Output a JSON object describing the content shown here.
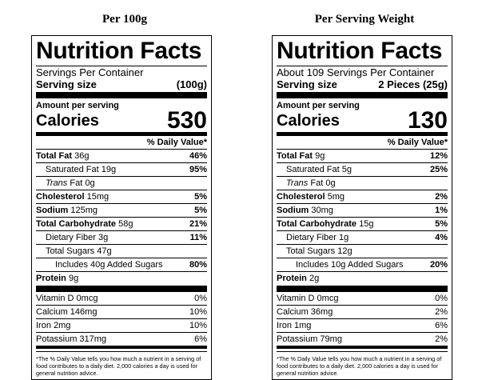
{
  "panels": [
    {
      "heading": "Per 100g",
      "title": "Nutrition Facts",
      "servings_line": "Servings Per Container",
      "serving_size_label": "Serving size",
      "serving_size_value": "(100g)",
      "amount_per_serving": "Amount per serving",
      "calories_label": "Calories",
      "calories_value": "530",
      "daily_value_header": "% Daily Value*",
      "nutrients": [
        {
          "name": "Total Fat",
          "amount": "36g",
          "dv": "46%",
          "bold": true
        },
        {
          "name": "Saturated Fat",
          "amount": "19g",
          "dv": "95%"
        },
        {
          "name": "Trans",
          "suffix": "Fat",
          "amount": "0g",
          "dv": ""
        },
        {
          "name": "Cholesterol",
          "amount": "15mg",
          "dv": "5%",
          "bold": true
        },
        {
          "name": "Sodium",
          "amount": "125mg",
          "dv": "5%",
          "bold": true
        },
        {
          "name": "Total Carbohydrate",
          "amount": "58g",
          "dv": "21%",
          "bold": true
        },
        {
          "name": "Dietary Fiber",
          "amount": "3g",
          "dv": "11%"
        },
        {
          "name": "Total Sugars",
          "amount": "47g",
          "dv": ""
        },
        {
          "name": "Includes 40g Added Sugars",
          "amount": "",
          "dv": "80%"
        },
        {
          "name": "Protein",
          "amount": "9g",
          "dv": "",
          "bold": true
        }
      ],
      "vitamins": [
        {
          "name": "Vitamin D",
          "amount": "0mcg",
          "dv": "0%"
        },
        {
          "name": "Calcium",
          "amount": "146mg",
          "dv": "10%"
        },
        {
          "name": "Iron",
          "amount": "2mg",
          "dv": "10%"
        },
        {
          "name": "Potassium",
          "amount": "317mg",
          "dv": "6%"
        }
      ],
      "footnote": "*The % Daily Value tells you how much a nutrient in a serving of food contributes to a daily diet. 2,000 calories a day is used for general nutrition advice."
    },
    {
      "heading": "Per Serving Weight",
      "title": "Nutrition Facts",
      "servings_line": "About 109 Servings Per Container",
      "serving_size_label": "Serving size",
      "serving_size_value": "2 Pieces (25g)",
      "amount_per_serving": "Amount per serving",
      "calories_label": "Calories",
      "calories_value": "130",
      "daily_value_header": "% Daily Value*",
      "nutrients": [
        {
          "name": "Total Fat",
          "amount": "9g",
          "dv": "12%",
          "bold": true
        },
        {
          "name": "Saturated Fat",
          "amount": "5g",
          "dv": "25%"
        },
        {
          "name": "Trans",
          "suffix": "Fat",
          "amount": "0g",
          "dv": ""
        },
        {
          "name": "Cholesterol",
          "amount": "5mg",
          "dv": "2%",
          "bold": true
        },
        {
          "name": "Sodium",
          "amount": "30mg",
          "dv": "1%",
          "bold": true
        },
        {
          "name": "Total Carbohydrate",
          "amount": "15g",
          "dv": "5%",
          "bold": true
        },
        {
          "name": "Dietary Fiber",
          "amount": "1g",
          "dv": "4%"
        },
        {
          "name": "Total Sugars",
          "amount": "12g",
          "dv": ""
        },
        {
          "name": "Includes 10g Added Sugars",
          "amount": "",
          "dv": "20%"
        },
        {
          "name": "Protein",
          "amount": "2g",
          "dv": "",
          "bold": true
        }
      ],
      "vitamins": [
        {
          "name": "Vitamin D",
          "amount": "0mcg",
          "dv": "0%"
        },
        {
          "name": "Calcium",
          "amount": "36mg",
          "dv": "2%"
        },
        {
          "name": "Iron",
          "amount": "1mg",
          "dv": "6%"
        },
        {
          "name": "Potassium",
          "amount": "79mg",
          "dv": "2%"
        }
      ],
      "footnote": "*The % Daily Value tells you how much a nutrient in a serving of food contributes to a daily diet. 2,000 calories a day is used for general nutrition advice."
    }
  ]
}
